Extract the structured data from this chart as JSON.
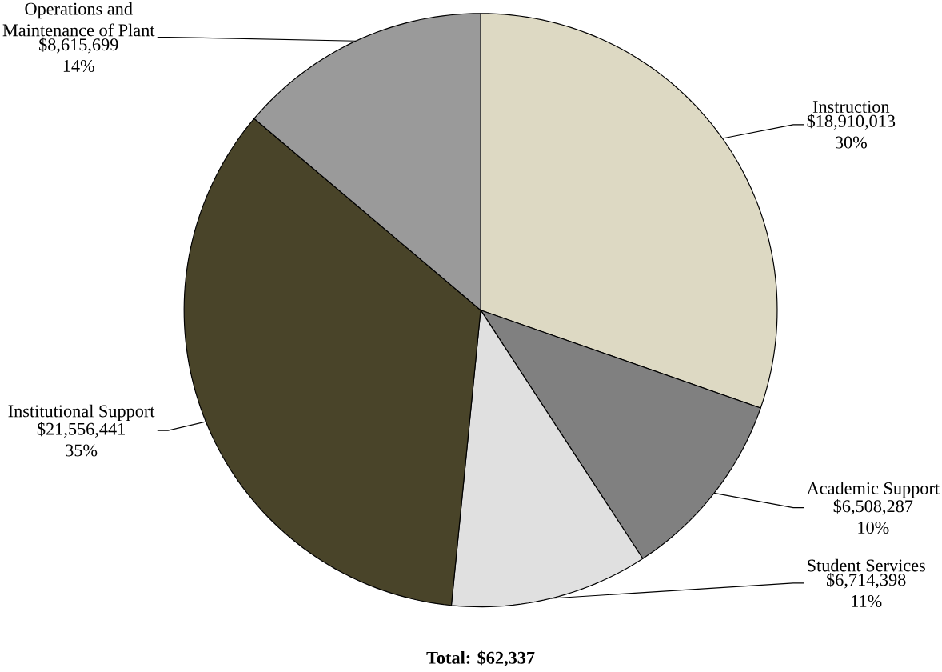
{
  "chart_data": {
    "type": "pie",
    "categories": [
      "Instruction",
      "Academic Support",
      "Student Services",
      "Institutional Support",
      "Operations and Maintenance of Plant"
    ],
    "values": [
      18910013,
      6508287,
      6714398,
      21556441,
      8615699
    ],
    "colors": [
      "#ddd9c3",
      "#808080",
      "#e0e0e0",
      "#494429",
      "#9a9a9a"
    ],
    "value_labels": [
      "$18,910,013 30%",
      "$6,508,287 10%",
      "$6,714,398 11%",
      "$21,556,441 35%",
      "$8,615,699 14%"
    ],
    "annotations": [
      "Total: $62,337"
    ]
  }
}
